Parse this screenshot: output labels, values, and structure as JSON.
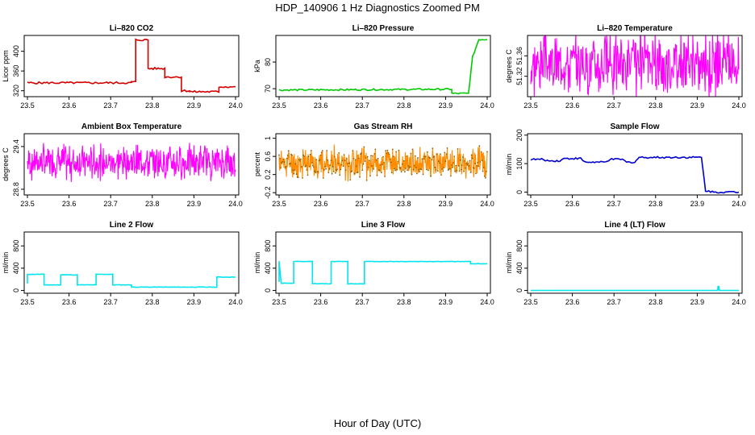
{
  "title": "HDP_140906  1 Hz Diagnostics Zoomed PM",
  "xlabel": "Hour of Day (UTC)",
  "chart_data": [
    {
      "type": "line",
      "title": "Li–820 CO2",
      "ylabel": "Licor ppm",
      "color": "#d40000",
      "xlim": [
        23.5,
        24.0
      ],
      "ylim": [
        308,
        432
      ],
      "xticks": [
        "23.5",
        "23.6",
        "23.7",
        "23.8",
        "23.9",
        "24.0"
      ],
      "yticks": [
        320,
        360,
        400
      ],
      "noise": 2,
      "series": [
        {
          "x": [
            23.5,
            23.75,
            23.75,
            23.76,
            23.76,
            23.79,
            23.79,
            23.83,
            23.83,
            23.87,
            23.87,
            23.89,
            23.89,
            23.96,
            23.96,
            24.0
          ],
          "y": [
            336,
            336,
            338,
            338,
            423,
            423,
            365,
            365,
            348,
            348,
            320,
            320,
            318,
            318,
            328,
            328
          ]
        }
      ]
    },
    {
      "type": "line",
      "title": "Li–820 Pressure",
      "ylabel": "kPa",
      "color": "#00c800",
      "xlim": [
        23.5,
        24.0
      ],
      "ylim": [
        67,
        90
      ],
      "xticks": [
        "23.5",
        "23.6",
        "23.7",
        "23.8",
        "23.9",
        "24.0"
      ],
      "yticks": [
        70,
        80
      ],
      "noise": 0.3,
      "series": [
        {
          "x": [
            23.5,
            23.915,
            23.915,
            23.955,
            23.965,
            23.98,
            24.0
          ],
          "y": [
            69.5,
            69.8,
            68.2,
            68.2,
            82,
            88.5,
            88.5
          ]
        }
      ]
    },
    {
      "type": "noise",
      "title": "Li–820 Temperature",
      "ylabel": "degrees C",
      "color": "#ff00ff",
      "xlim": [
        23.5,
        24.0
      ],
      "ylim": [
        51.28,
        51.4
      ],
      "xticks": [
        "23.5",
        "23.6",
        "23.7",
        "23.8",
        "23.9",
        "24.0"
      ],
      "yticks": [
        51.32,
        51.36
      ],
      "center": 51.345,
      "spread": 0.05,
      "n": 420,
      "seed": 3
    },
    {
      "type": "noise",
      "title": "Ambient Box Temperature",
      "ylabel": "degrees C",
      "color": "#ff00ff",
      "xlim": [
        23.5,
        24.0
      ],
      "ylim": [
        28.72,
        29.58
      ],
      "xticks": [
        "23.5",
        "23.6",
        "23.7",
        "23.8",
        "23.9",
        "24.0"
      ],
      "yticks": [
        28.8,
        29.4
      ],
      "center": 29.18,
      "spread": 0.2,
      "n": 480,
      "seed": 7
    },
    {
      "type": "noise",
      "title": "Gas Stream RH",
      "ylabel": "percent",
      "color": "#ff8c00",
      "marker_color": "#8b6508",
      "xlim": [
        23.5,
        24.0
      ],
      "ylim": [
        -0.25,
        1.1
      ],
      "xticks": [
        "23.5",
        "23.6",
        "23.7",
        "23.8",
        "23.9",
        "24.0"
      ],
      "yticks": [
        -0.2,
        0.2,
        0.6,
        1.0
      ],
      "center": 0.45,
      "spread": 0.28,
      "n": 480,
      "seed": 11
    },
    {
      "type": "line",
      "title": "Sample Flow",
      "ylabel": "ml/min",
      "color": "#0000cd",
      "xlim": [
        23.5,
        24.0
      ],
      "ylim": [
        -10,
        205
      ],
      "xticks": [
        "23.5",
        "23.6",
        "23.7",
        "23.8",
        "23.9",
        "24.0"
      ],
      "yticks": [
        0,
        100,
        200
      ],
      "noise": 3,
      "series": [
        {
          "x": [
            23.5,
            23.53,
            23.54,
            23.57,
            23.58,
            23.62,
            23.63,
            23.68,
            23.69,
            23.72,
            23.73,
            23.75,
            23.76,
            23.91,
            23.92,
            23.94,
            24.0
          ],
          "y": [
            115,
            115,
            110,
            110,
            118,
            118,
            105,
            105,
            115,
            115,
            105,
            105,
            122,
            122,
            5,
            0,
            0
          ]
        }
      ]
    },
    {
      "type": "line",
      "title": "Line 2 Flow",
      "ylabel": "ml/min",
      "color": "#00e5ee",
      "xlim": [
        23.5,
        24.0
      ],
      "ylim": [
        -50,
        1050
      ],
      "xticks": [
        "23.5",
        "23.6",
        "23.7",
        "23.8",
        "23.9",
        "24.0"
      ],
      "yticks": [
        0,
        400,
        800
      ],
      "noise": 4,
      "series": [
        {
          "x": [
            23.5,
            23.5,
            23.54,
            23.54,
            23.58,
            23.58,
            23.62,
            23.62,
            23.665,
            23.665,
            23.705,
            23.705,
            23.75,
            23.75,
            23.955,
            23.955,
            24.0
          ],
          "y": [
            120,
            290,
            290,
            100,
            100,
            280,
            280,
            100,
            100,
            290,
            290,
            100,
            100,
            60,
            60,
            240,
            240
          ]
        }
      ]
    },
    {
      "type": "line",
      "title": "Line 3 Flow",
      "ylabel": "ml/min",
      "color": "#00e5ee",
      "xlim": [
        23.5,
        24.0
      ],
      "ylim": [
        -50,
        1050
      ],
      "xticks": [
        "23.5",
        "23.6",
        "23.7",
        "23.8",
        "23.9",
        "24.0"
      ],
      "yticks": [
        0,
        400,
        800
      ],
      "noise": 4,
      "series": [
        {
          "x": [
            23.5,
            23.5,
            23.505,
            23.535,
            23.535,
            23.58,
            23.58,
            23.625,
            23.625,
            23.665,
            23.665,
            23.705,
            23.705,
            23.96,
            23.96,
            24.0
          ],
          "y": [
            150,
            530,
            130,
            130,
            520,
            520,
            120,
            120,
            520,
            520,
            120,
            120,
            520,
            520,
            480,
            480
          ]
        }
      ]
    },
    {
      "type": "line",
      "title": "Line 4 (LT) Flow",
      "ylabel": "ml/min",
      "color": "#00e5ee",
      "xlim": [
        23.5,
        24.0
      ],
      "ylim": [
        -50,
        1050
      ],
      "xticks": [
        "23.5",
        "23.6",
        "23.7",
        "23.8",
        "23.9",
        "24.0"
      ],
      "yticks": [
        0,
        400,
        800
      ],
      "noise": 0,
      "series": [
        {
          "x": [
            23.5,
            23.949,
            23.95,
            23.952,
            23.953,
            24.0
          ],
          "y": [
            0,
            0,
            70,
            70,
            0,
            0
          ]
        }
      ]
    }
  ]
}
